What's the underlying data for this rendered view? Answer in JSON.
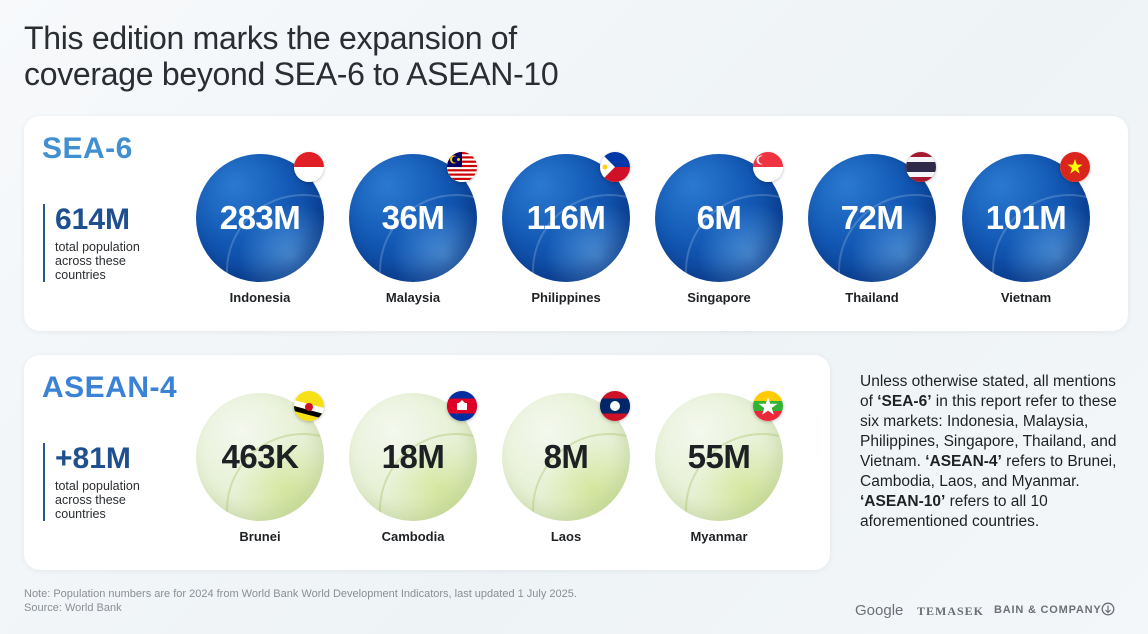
{
  "title_line1": "This edition marks the expansion of",
  "title_line2": "coverage beyond SEA-6 to ASEAN-10",
  "sea6": {
    "title": "SEA-6",
    "total_value": "614M",
    "total_label": "total population across these countries",
    "markets": [
      {
        "value": "283M",
        "country": "Indonesia",
        "flag": "indonesia-flag-icon"
      },
      {
        "value": "36M",
        "country": "Malaysia",
        "flag": "malaysia-flag-icon"
      },
      {
        "value": "116M",
        "country": "Philippines",
        "flag": "philippines-flag-icon"
      },
      {
        "value": "6M",
        "country": "Singapore",
        "flag": "singapore-flag-icon"
      },
      {
        "value": "72M",
        "country": "Thailand",
        "flag": "thailand-flag-icon"
      },
      {
        "value": "101M",
        "country": "Vietnam",
        "flag": "vietnam-flag-icon"
      }
    ]
  },
  "asean4": {
    "title": "ASEAN-4",
    "total_value": "+81M",
    "total_label": "total population across these countries",
    "markets": [
      {
        "value": "463K",
        "country": "Brunei",
        "flag": "brunei-flag-icon"
      },
      {
        "value": "18M",
        "country": "Cambodia",
        "flag": "cambodia-flag-icon"
      },
      {
        "value": "8M",
        "country": "Laos",
        "flag": "laos-flag-icon"
      },
      {
        "value": "55M",
        "country": "Myanmar",
        "flag": "myanmar-flag-icon"
      }
    ]
  },
  "note": {
    "p1": "Unless otherwise stated, all mentions of ",
    "sea6_term": "‘SEA-6’",
    "p2": " in this report refer to these six markets: Indonesia, Malaysia, Philippines, Singapore, Thailand, and Vietnam. ",
    "asean4_term": "‘ASEAN-4’",
    "p3": " refers to Brunei, Cambodia, Laos, and Myanmar. ",
    "asean10_term": "‘ASEAN-10’",
    "p4": " refers to all 10 aforementioned countries."
  },
  "footnote_line1": "Note: Population numbers are for 2024 from World Bank World Development Indicators, last updated 1 July 2025.",
  "footnote_line2": "Source: World Bank",
  "logos": {
    "google": "Google",
    "temasek": "TEMASEK",
    "bain": "BAIN & COMPANY"
  }
}
